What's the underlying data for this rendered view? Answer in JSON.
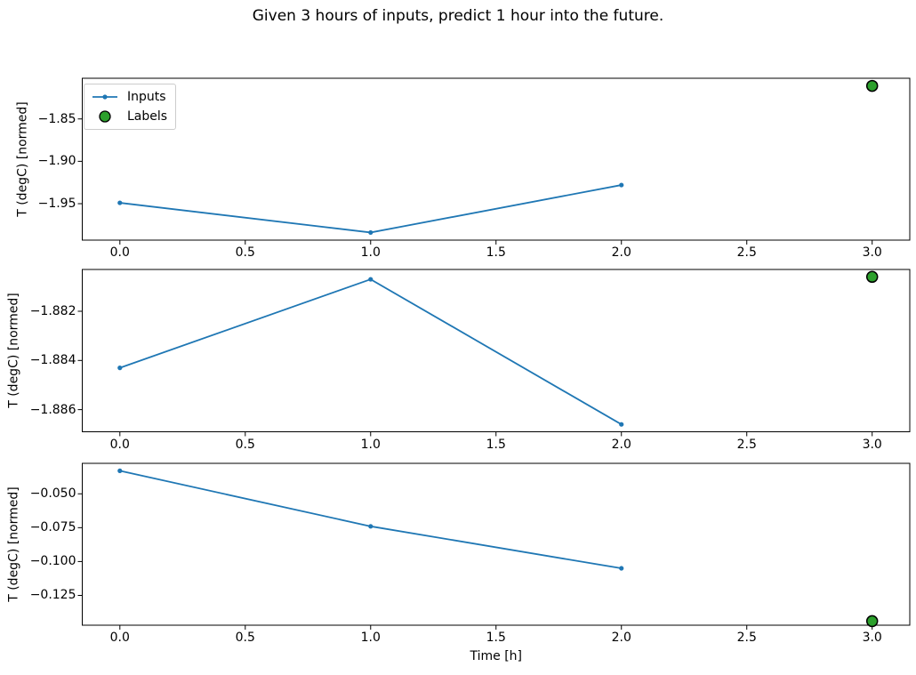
{
  "title": "Given 3 hours of inputs, predict 1 hour into the future.",
  "colors": {
    "inputs_line": "#1f77b4",
    "labels_fill": "#2ca02c",
    "labels_edge": "#000000",
    "axes": "#000000",
    "legend_border": "#cccccc"
  },
  "legend": {
    "position": "upper left",
    "entries": [
      {
        "label": "Inputs",
        "icon": "line-marker-icon"
      },
      {
        "label": "Labels",
        "icon": "filled-circle-icon"
      }
    ]
  },
  "chart_data": [
    {
      "type": "line",
      "ylabel": "T (degC) [normed]",
      "series": [
        {
          "name": "Inputs",
          "x": [
            0,
            1,
            2
          ],
          "y": [
            -1.949,
            -1.984,
            -1.928
          ]
        }
      ],
      "label_points": {
        "name": "Labels",
        "x": [
          3
        ],
        "y": [
          -1.811
        ]
      },
      "xlim": [
        -0.15,
        3.15
      ],
      "ylim": [
        -1.993,
        -1.802
      ],
      "xticks": {
        "values": [
          0,
          0.5,
          1,
          1.5,
          2,
          2.5,
          3
        ],
        "labels": [
          "0.0",
          "0.5",
          "1.0",
          "1.5",
          "2.0",
          "2.5",
          "3.0"
        ]
      },
      "yticks": {
        "values": [
          -1.85,
          -1.9,
          -1.95
        ],
        "labels": [
          "−1.85",
          "−1.90",
          "−1.95"
        ]
      },
      "grid": false,
      "has_legend": true
    },
    {
      "type": "line",
      "ylabel": "T (degC) [normed]",
      "series": [
        {
          "name": "Inputs",
          "x": [
            0,
            1,
            2
          ],
          "y": [
            -1.8843,
            -1.8807,
            -1.8866
          ]
        }
      ],
      "label_points": {
        "name": "Labels",
        "x": [
          3
        ],
        "y": [
          -1.8806
        ]
      },
      "xlim": [
        -0.15,
        3.15
      ],
      "ylim": [
        -1.8869,
        -1.8803
      ],
      "xticks": {
        "values": [
          0,
          0.5,
          1,
          1.5,
          2,
          2.5,
          3
        ],
        "labels": [
          "0.0",
          "0.5",
          "1.0",
          "1.5",
          "2.0",
          "2.5",
          "3.0"
        ]
      },
      "yticks": {
        "values": [
          -1.882,
          -1.884,
          -1.886
        ],
        "labels": [
          "−1.882",
          "−1.884",
          "−1.886"
        ]
      },
      "grid": false,
      "has_legend": false
    },
    {
      "type": "line",
      "ylabel": "T (degC) [normed]",
      "xlabel": "Time [h]",
      "series": [
        {
          "name": "Inputs",
          "x": [
            0,
            1,
            2
          ],
          "y": [
            -0.033,
            -0.074,
            -0.105
          ]
        }
      ],
      "label_points": {
        "name": "Labels",
        "x": [
          3
        ],
        "y": [
          -0.144
        ]
      },
      "xlim": [
        -0.15,
        3.15
      ],
      "ylim": [
        -0.147,
        -0.0275
      ],
      "xticks": {
        "values": [
          0,
          0.5,
          1,
          1.5,
          2,
          2.5,
          3
        ],
        "labels": [
          "0.0",
          "0.5",
          "1.0",
          "1.5",
          "2.0",
          "2.5",
          "3.0"
        ]
      },
      "yticks": {
        "values": [
          -0.05,
          -0.075,
          -0.1,
          -0.125
        ],
        "labels": [
          "−0.050",
          "−0.075",
          "−0.100",
          "−0.125"
        ]
      },
      "grid": false,
      "has_legend": false
    }
  ]
}
